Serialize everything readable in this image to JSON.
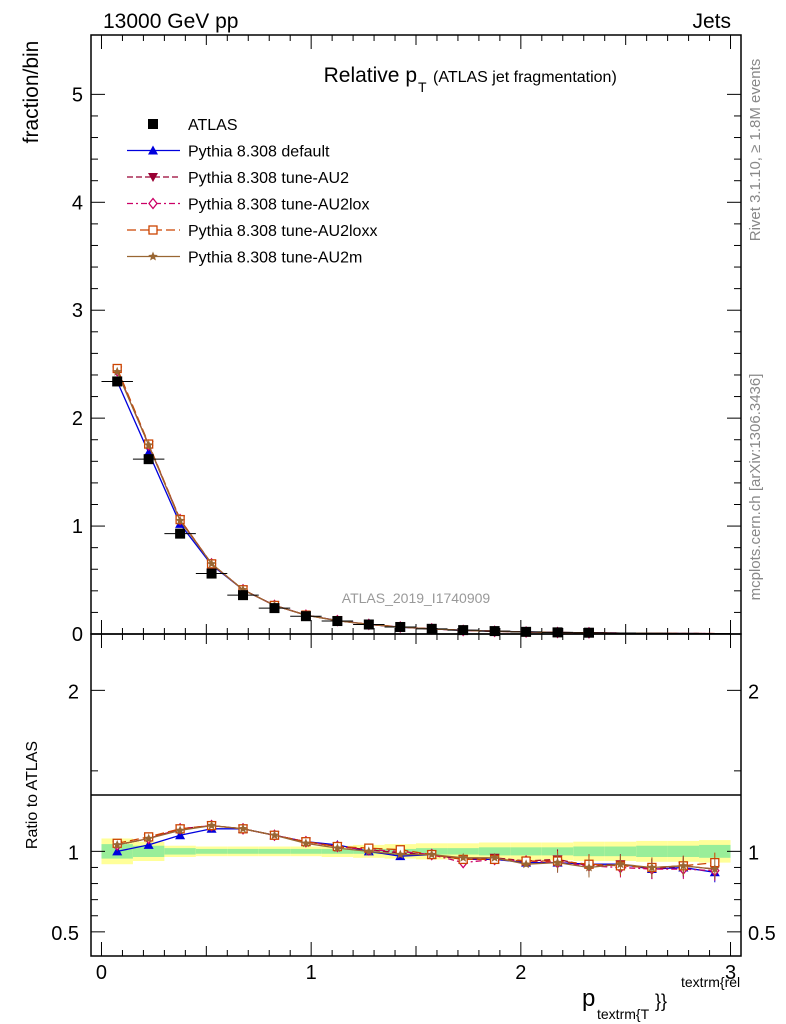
{
  "header": {
    "left": "13000 GeV pp",
    "right": "Jets"
  },
  "side_labels": {
    "rivet": "Rivet 3.1.10, ≥ 1.8M events",
    "mcplots": "mcplots.cern.ch [arXiv:1306.3436]"
  },
  "chart_data": [
    {
      "panel": "main",
      "type": "line",
      "title": "Relative p",
      "title_sub": "T",
      "title_suffix": "(ATLAS jet fragmentation)",
      "ylabel": "fraction/bin",
      "watermark": "ATLAS_2019_I1740909",
      "xlim": [
        -0.05,
        3.05
      ],
      "ylim": [
        0,
        5.55
      ],
      "yticks": [
        0,
        1,
        2,
        3,
        4,
        5
      ],
      "x": [
        0.075,
        0.225,
        0.375,
        0.525,
        0.675,
        0.825,
        0.975,
        1.125,
        1.275,
        1.425,
        1.575,
        1.725,
        1.875,
        2.025,
        2.175,
        2.325,
        2.475,
        2.625,
        2.775,
        2.925
      ],
      "series": [
        {
          "name": "ATLAS",
          "color": "#000000",
          "marker": "square",
          "line": "none",
          "values": [
            2.34,
            1.62,
            0.93,
            0.56,
            0.36,
            0.24,
            0.165,
            0.12,
            0.088,
            0.065,
            0.048,
            0.036,
            0.027,
            0.02,
            0.015,
            0.012,
            0.009,
            0.007,
            0.0055,
            0.0045
          ]
        },
        {
          "name": "Pythia 8.308 default",
          "color": "#0000dd",
          "marker": "triangle-up",
          "line": "solid",
          "values": [
            2.34,
            1.68,
            1.02,
            0.64,
            0.41,
            0.265,
            0.175,
            0.125,
            0.088,
            0.063,
            0.047,
            0.034,
            0.026,
            0.019,
            0.014,
            0.011,
            0.008,
            0.0062,
            0.005,
            0.0039
          ]
        },
        {
          "name": "Pythia 8.308 tune-AU2",
          "color": "#990033",
          "marker": "triangle-down",
          "line": "dashed",
          "values": [
            2.44,
            1.75,
            1.06,
            0.65,
            0.41,
            0.265,
            0.175,
            0.124,
            0.089,
            0.064,
            0.047,
            0.034,
            0.026,
            0.0188,
            0.0142,
            0.011,
            0.0083,
            0.0062,
            0.005,
            0.004
          ]
        },
        {
          "name": "Pythia 8.308 tune-AU2lox",
          "color": "#cc0066",
          "marker": "diamond-open",
          "line": "dashdot",
          "values": [
            2.44,
            1.75,
            1.06,
            0.65,
            0.41,
            0.265,
            0.175,
            0.124,
            0.089,
            0.065,
            0.047,
            0.033,
            0.025,
            0.0187,
            0.014,
            0.0108,
            0.0081,
            0.0062,
            0.0049,
            0.004
          ]
        },
        {
          "name": "Pythia 8.308 tune-AU2loxx",
          "color": "#cc4400",
          "marker": "square-open",
          "line": "longdash",
          "values": [
            2.46,
            1.76,
            1.06,
            0.65,
            0.41,
            0.265,
            0.175,
            0.124,
            0.09,
            0.066,
            0.047,
            0.034,
            0.026,
            0.0188,
            0.0142,
            0.011,
            0.0082,
            0.0063,
            0.005,
            0.0042
          ]
        },
        {
          "name": "Pythia 8.308 tune-AU2m",
          "color": "#996633",
          "marker": "star",
          "line": "solid",
          "values": [
            2.43,
            1.75,
            1.05,
            0.65,
            0.41,
            0.265,
            0.174,
            0.123,
            0.088,
            0.064,
            0.047,
            0.034,
            0.026,
            0.0185,
            0.014,
            0.0105,
            0.0083,
            0.0063,
            0.005,
            0.004
          ]
        }
      ]
    },
    {
      "panel": "ratio",
      "type": "line",
      "ylabel": "Ratio to ATLAS",
      "xlabel_main": "p",
      "xlabel_sub": "textrm{T",
      "xlabel_sup": "textrm{rel",
      "xlabel_braces": "}}",
      "xlim": [
        -0.05,
        3.05
      ],
      "ylim": [
        0.35,
        2.35
      ],
      "yticks": [
        0.5,
        1,
        2
      ],
      "ytick_labels": [
        "0.5",
        "1",
        "2"
      ],
      "xticks": [
        0,
        1,
        2,
        3
      ],
      "xtick_labels": [
        "0",
        "1",
        "2",
        "3"
      ],
      "band_inner": [
        0.045,
        0.035,
        0.02,
        0.015,
        0.015,
        0.015,
        0.015,
        0.015,
        0.015,
        0.015,
        0.02,
        0.02,
        0.025,
        0.025,
        0.025,
        0.03,
        0.03,
        0.035,
        0.035,
        0.04
      ],
      "band_outer": [
        0.08,
        0.06,
        0.035,
        0.03,
        0.03,
        0.03,
        0.03,
        0.035,
        0.04,
        0.045,
        0.05,
        0.05,
        0.055,
        0.055,
        0.055,
        0.06,
        0.06,
        0.065,
        0.065,
        0.07
      ],
      "series": [
        {
          "name": "Pythia 8.308 default",
          "values": [
            1.0,
            1.04,
            1.1,
            1.14,
            1.14,
            1.1,
            1.06,
            1.04,
            1.0,
            0.97,
            0.98,
            0.95,
            0.95,
            0.93,
            0.93,
            0.92,
            0.92,
            0.89,
            0.9,
            0.87
          ]
        },
        {
          "name": "Pythia 8.308 tune-AU2",
          "values": [
            1.04,
            1.08,
            1.14,
            1.16,
            1.14,
            1.1,
            1.06,
            1.03,
            1.01,
            0.99,
            0.98,
            0.95,
            0.96,
            0.94,
            0.95,
            0.91,
            0.92,
            0.89,
            0.91,
            0.89
          ]
        },
        {
          "name": "Pythia 8.308 tune-AU2lox",
          "values": [
            1.04,
            1.08,
            1.14,
            1.16,
            1.14,
            1.1,
            1.06,
            1.03,
            1.01,
            1.0,
            0.98,
            0.93,
            0.95,
            0.94,
            0.93,
            0.91,
            0.9,
            0.89,
            0.89,
            0.88
          ]
        },
        {
          "name": "Pythia 8.308 tune-AU2loxx",
          "values": [
            1.05,
            1.09,
            1.14,
            1.16,
            1.14,
            1.1,
            1.06,
            1.03,
            1.02,
            1.01,
            0.98,
            0.95,
            0.95,
            0.94,
            0.94,
            0.92,
            0.91,
            0.9,
            0.91,
            0.93
          ]
        },
        {
          "name": "Pythia 8.308 tune-AU2m",
          "values": [
            1.04,
            1.08,
            1.13,
            1.16,
            1.14,
            1.1,
            1.05,
            1.02,
            1.0,
            0.98,
            0.98,
            0.96,
            0.96,
            0.92,
            0.93,
            0.9,
            0.92,
            0.9,
            0.91,
            0.89
          ]
        }
      ]
    }
  ]
}
